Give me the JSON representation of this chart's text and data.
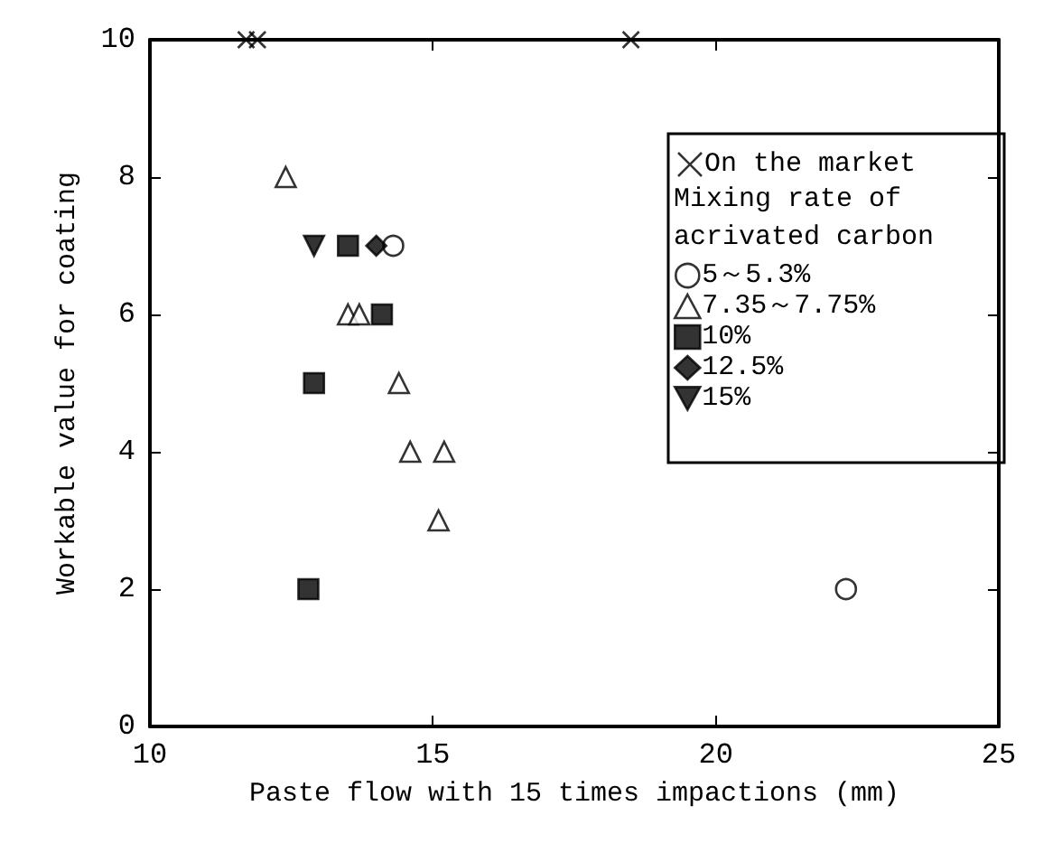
{
  "chart_data": {
    "type": "scatter",
    "xlabel": "Paste flow with 15 times impactions (mm)",
    "ylabel": "Workable value for coating",
    "legend_title": "Mixing rate of\nacrivated carbon",
    "legend": "top right",
    "grid": false,
    "xlim": [
      10,
      25
    ],
    "xticks": [
      10,
      15,
      20,
      25
    ],
    "ylim": [
      0,
      10
    ],
    "yticks": [
      0,
      2,
      4,
      6,
      8,
      10
    ],
    "series": [
      {
        "name": "On the market",
        "color": "#000000",
        "marker": "cross",
        "x": [
          11.7,
          11.9,
          18.5
        ],
        "values": [
          10,
          10,
          10
        ]
      },
      {
        "name": "5～5.3%",
        "color": "#ffffff",
        "marker": "circle",
        "x": [
          14.3,
          22.3
        ],
        "values": [
          7,
          2
        ]
      },
      {
        "name": "7.35～7.75%",
        "color": "#ffffff",
        "marker": "triangle",
        "x": [
          12.4,
          13.5,
          13.7,
          14.4,
          14.6,
          15.2,
          15.1
        ],
        "values": [
          8,
          6,
          6,
          5,
          4,
          4,
          3
        ]
      },
      {
        "name": "10%",
        "color": "#000000",
        "marker": "square",
        "x": [
          13.5,
          14.1,
          12.9,
          12.8
        ],
        "values": [
          7,
          6,
          5,
          2
        ]
      },
      {
        "name": "12.5%",
        "color": "#000000",
        "marker": "diamond",
        "x": [
          14.0
        ],
        "values": [
          7
        ]
      },
      {
        "name": "15%",
        "color": "#000000",
        "marker": "triangle-down",
        "x": [
          12.9
        ],
        "values": [
          7
        ]
      }
    ]
  }
}
